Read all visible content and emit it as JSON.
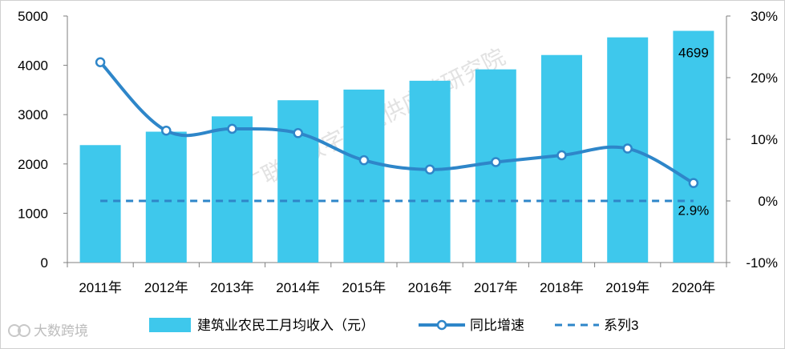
{
  "chart_data": {
    "type": "bar",
    "title": "",
    "categories": [
      "2011年",
      "2012年",
      "2013年",
      "2014年",
      "2015年",
      "2016年",
      "2017年",
      "2018年",
      "2019年",
      "2020年"
    ],
    "series": [
      {
        "name": "建筑业农民工月均收入（元）",
        "type": "bar",
        "axis": "left",
        "values": [
          2382,
          2654,
          2965,
          3292,
          3508,
          3687,
          3918,
          4209,
          4567,
          4699
        ]
      },
      {
        "name": "同比增速",
        "type": "line",
        "axis": "right",
        "unit": "%",
        "values": [
          22.5,
          11.4,
          11.7,
          11.0,
          6.6,
          5.1,
          6.3,
          7.4,
          8.5,
          2.9
        ]
      },
      {
        "name": "系列3",
        "type": "line-dashed",
        "axis": "right",
        "unit": "%",
        "values": [
          0,
          0,
          0,
          0,
          0,
          0,
          0,
          0,
          0,
          0
        ]
      }
    ],
    "data_labels": [
      {
        "series": 0,
        "index": 9,
        "text": "4699"
      },
      {
        "series": 1,
        "index": 9,
        "text": "2.9%"
      }
    ],
    "y_left": {
      "ylim": [
        0,
        5000
      ],
      "ticks": [
        "0",
        "1000",
        "2000",
        "3000",
        "4000",
        "5000"
      ]
    },
    "y_right": {
      "ylim": [
        -10,
        30
      ],
      "ticks": [
        "-10%",
        "0%",
        "10%",
        "20%",
        "30%"
      ]
    },
    "legend_position": "bottom",
    "grid": false,
    "colors": {
      "bars": "#3ec8ec",
      "line": "#2e86c9",
      "dashed": "#2e86c9"
    },
    "watermark": "广联达数字建筑供应链研究院",
    "brand": "大数跨境"
  }
}
